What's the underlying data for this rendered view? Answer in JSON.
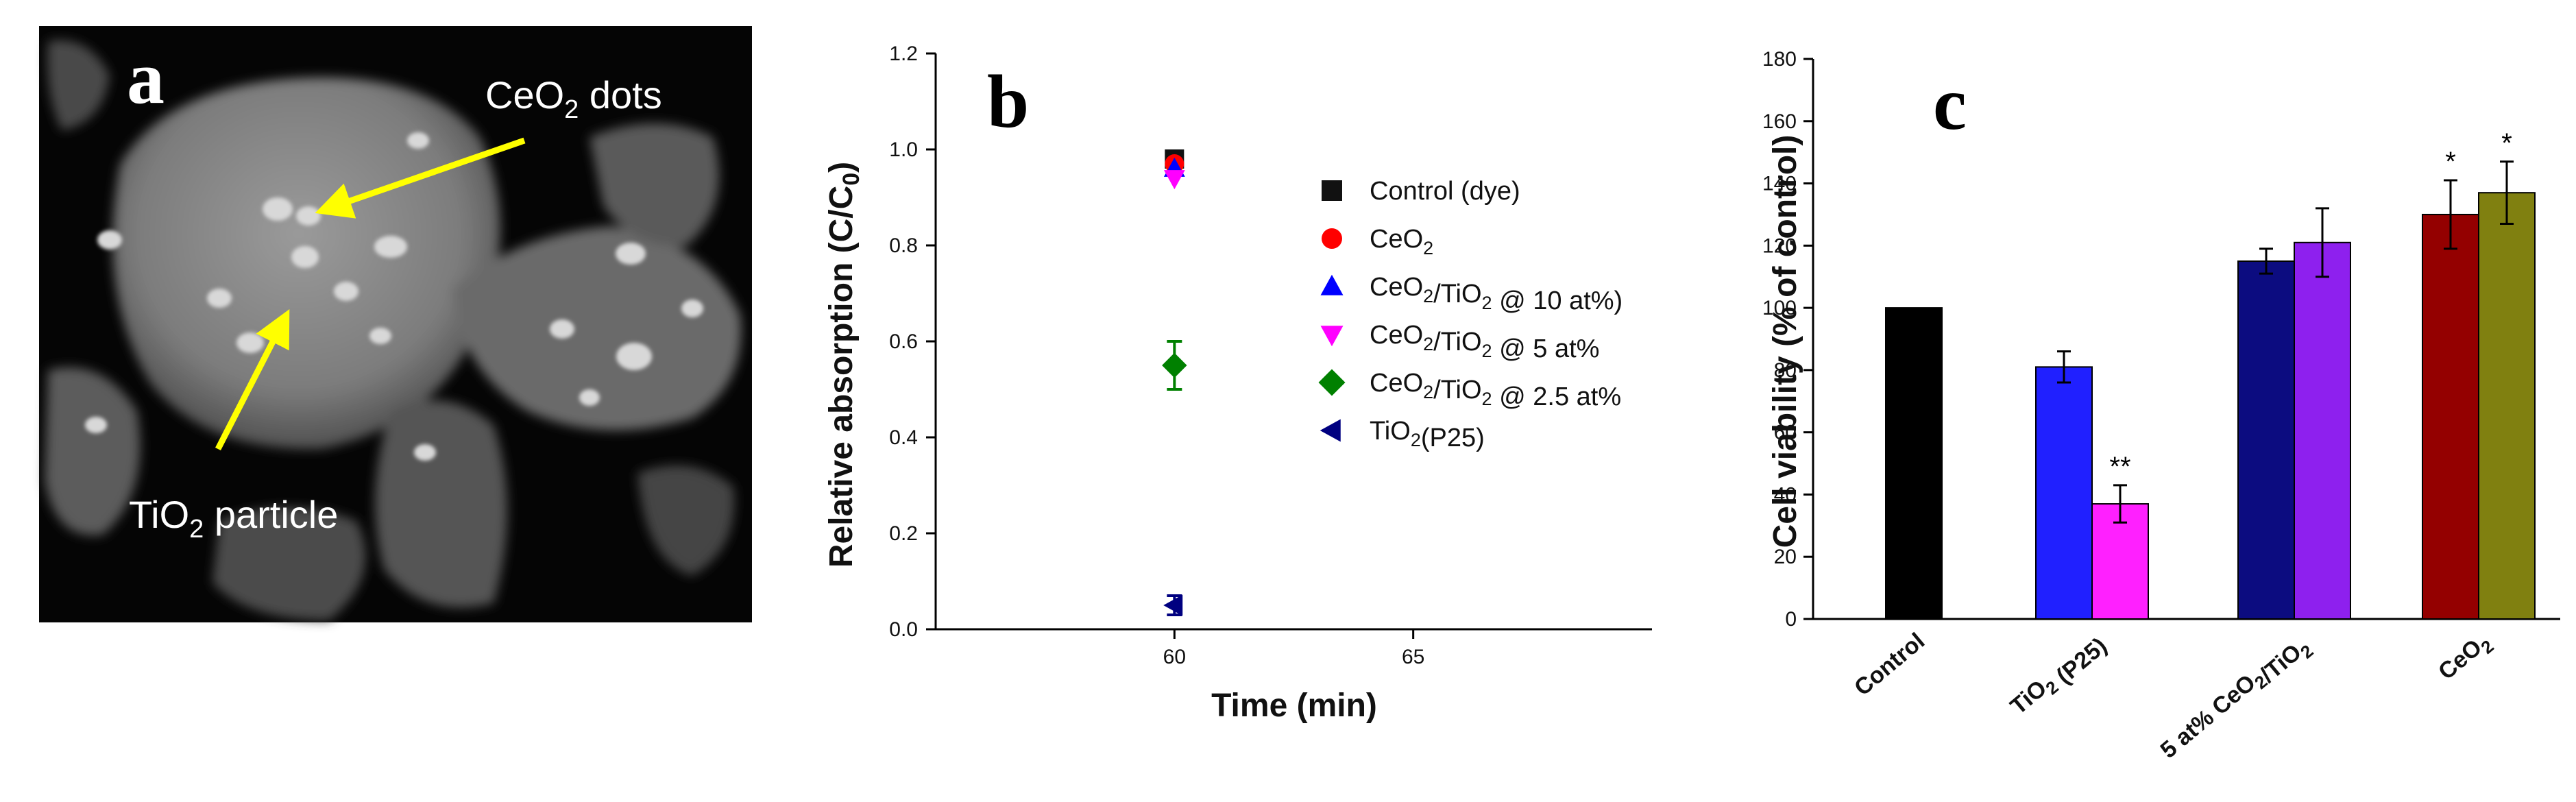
{
  "panel_a": {
    "letter": "a",
    "label_ceo2_main": "CeO",
    "label_ceo2_sub": "2",
    "label_ceo2_rest": " dots",
    "label_tio2_main": "TiO",
    "label_tio2_sub": "2",
    "label_tio2_rest": " particle"
  },
  "chart_data": [
    {
      "panel": "b",
      "type": "scatter",
      "title": "",
      "xlabel": "Time (min)",
      "ylabel_main": "Relative absorption (C/C",
      "ylabel_sub": "0",
      "ylabel_end": ")",
      "xlim": [
        55,
        70
      ],
      "ylim": [
        0.0,
        1.2
      ],
      "xticks": [
        60,
        65
      ],
      "xtick_labels": [
        "60",
        "65"
      ],
      "yticks": [
        0.0,
        0.2,
        0.4,
        0.6,
        0.8,
        1.0,
        1.2
      ],
      "ytick_labels": [
        "0.0",
        "0.2",
        "0.4",
        "0.6",
        "0.8",
        "1.0",
        "1.2"
      ],
      "legend_position": "right",
      "series": [
        {
          "name": "Control (dye)",
          "legend_parts": [
            {
              "t": "Control (dye)"
            }
          ],
          "marker": "square",
          "color": "#111111",
          "x": 60,
          "y": 0.98,
          "err": 0.0
        },
        {
          "name": "CeO2",
          "legend_parts": [
            {
              "t": "CeO"
            },
            {
              "t": "2",
              "sub": true
            }
          ],
          "marker": "circle",
          "color": "#ff0000",
          "x": 60,
          "y": 0.97,
          "err": 0.0
        },
        {
          "name": "CeO2/TiO2 @ 10 at%)",
          "legend_parts": [
            {
              "t": "CeO"
            },
            {
              "t": "2",
              "sub": true
            },
            {
              "t": "/TiO"
            },
            {
              "t": "2",
              "sub": true
            },
            {
              "t": " @ 10 at%)"
            }
          ],
          "marker": "triangle-up",
          "color": "#0000ff",
          "x": 60,
          "y": 0.96,
          "err": 0.0
        },
        {
          "name": "CeO2/TiO2 @ 5 at%",
          "legend_parts": [
            {
              "t": "CeO"
            },
            {
              "t": "2",
              "sub": true
            },
            {
              "t": "/TiO"
            },
            {
              "t": "2",
              "sub": true
            },
            {
              "t": " @ 5 at%"
            }
          ],
          "marker": "triangle-down",
          "color": "#ff00ff",
          "x": 60,
          "y": 0.94,
          "err": 0.0
        },
        {
          "name": "CeO2/TiO2 @ 2.5 at%",
          "legend_parts": [
            {
              "t": "CeO"
            },
            {
              "t": "2",
              "sub": true
            },
            {
              "t": "/TiO"
            },
            {
              "t": "2",
              "sub": true
            },
            {
              "t": " @ 2.5 at%"
            }
          ],
          "marker": "diamond",
          "color": "#008000",
          "x": 60,
          "y": 0.55,
          "err": 0.05
        },
        {
          "name": "TiO2(P25)",
          "legend_parts": [
            {
              "t": "TiO"
            },
            {
              "t": "2",
              "sub": true
            },
            {
              "t": "(P25)"
            }
          ],
          "marker": "triangle-left",
          "color": "#000080",
          "x": 60,
          "y": 0.05,
          "err": 0.02
        }
      ]
    },
    {
      "panel": "c",
      "type": "bar",
      "title": "",
      "xlabel": "",
      "ylabel": "Cell viability (% of control)",
      "ylim": [
        0,
        180
      ],
      "yticks": [
        0,
        20,
        40,
        60,
        80,
        100,
        120,
        140,
        160,
        180
      ],
      "ytick_labels": [
        "0",
        "20",
        "40",
        "60",
        "80",
        "100",
        "120",
        "140",
        "160",
        "180"
      ],
      "categories": [
        {
          "label": "Control",
          "parts": [
            {
              "t": "Control"
            }
          ]
        },
        {
          "label": "TiO2 (P25)",
          "parts": [
            {
              "t": "TiO"
            },
            {
              "t": "2",
              "sub": true
            },
            {
              "t": " (P25)"
            }
          ]
        },
        {
          "label": "5 at% CeO2/TiO2",
          "parts": [
            {
              "t": "5 at% CeO"
            },
            {
              "t": "2",
              "sub": true
            },
            {
              "t": "/TiO"
            },
            {
              "t": "2",
              "sub": true
            }
          ]
        },
        {
          "label": "CeO2",
          "parts": [
            {
              "t": "CeO"
            },
            {
              "t": "2",
              "sub": true
            }
          ]
        }
      ],
      "bars": [
        {
          "group": 0,
          "value": 100,
          "err": 0,
          "color": "#000000",
          "annotation": ""
        },
        {
          "group": 1,
          "value": 81,
          "err": 5,
          "color": "#2020ff",
          "annotation": ""
        },
        {
          "group": 1,
          "value": 37,
          "err": 6,
          "color": "#ff20ff",
          "annotation": "**"
        },
        {
          "group": 2,
          "value": 115,
          "err": 4,
          "color": "#0c0c80",
          "annotation": ""
        },
        {
          "group": 2,
          "value": 121,
          "err": 11,
          "color": "#8e20ee",
          "annotation": ""
        },
        {
          "group": 3,
          "value": 130,
          "err": 11,
          "color": "#940000",
          "annotation": "*"
        },
        {
          "group": 3,
          "value": 137,
          "err": 10,
          "color": "#808010",
          "annotation": "*"
        }
      ]
    }
  ]
}
